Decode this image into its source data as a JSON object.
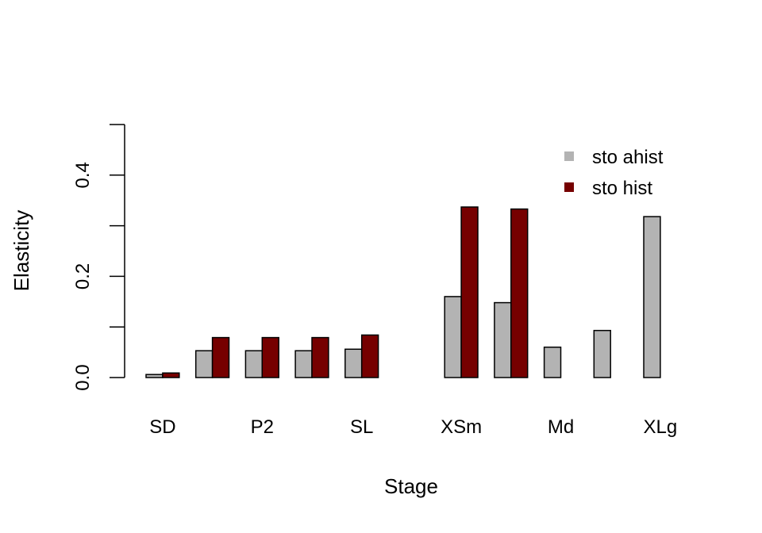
{
  "chart_data": {
    "type": "bar",
    "title": "",
    "xlabel": "Stage",
    "ylabel": "Elasticity",
    "ylim": [
      0,
      0.5
    ],
    "yticks": [
      0.0,
      0.1,
      0.2,
      0.3,
      0.4,
      0.5
    ],
    "ytick_labels": [
      "0.0",
      "0.2",
      "0.4"
    ],
    "categories": [
      "SD",
      "",
      "P2",
      "",
      "SL",
      "",
      "XSm",
      "",
      "Md",
      "",
      "XLg"
    ],
    "series": [
      {
        "name": "sto ahist",
        "color": "#b3b3b3",
        "values": [
          0.006,
          0.053,
          0.053,
          0.053,
          0.056,
          0.0,
          0.16,
          0.148,
          0.06,
          0.093,
          0.318
        ]
      },
      {
        "name": "sto hist",
        "color": "#760000",
        "values": [
          0.009,
          0.079,
          0.079,
          0.079,
          0.084,
          0.0,
          0.337,
          0.333,
          0.0,
          0.0,
          0.0
        ]
      }
    ],
    "legend_position": "top-right",
    "grid": false
  }
}
